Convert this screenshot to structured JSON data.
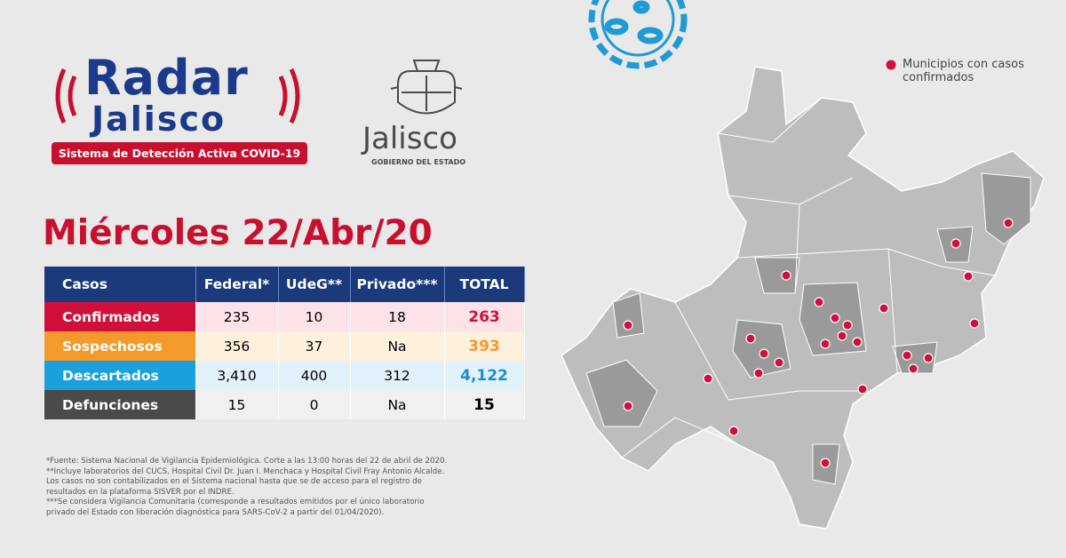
{
  "logo": {
    "radar": "Radar",
    "jalisco": "Jalisco",
    "tagline": "Sistema de Detección Activa COVID-19"
  },
  "government": {
    "name": "Jalisco",
    "subtitle": "GOBIERNO DEL ESTADO"
  },
  "date_title": "Miércoles 22/Abr/20",
  "table": {
    "header": [
      "Casos",
      "Federal*",
      "UdeG**",
      "Privado***",
      "TOTAL"
    ],
    "rows": [
      [
        "Confirmados",
        "235",
        "10",
        "18",
        "263"
      ],
      [
        "Sospechosos",
        "356",
        "37",
        "Na",
        "393"
      ],
      [
        "Descartados",
        "3,410",
        "400",
        "312",
        "4,122"
      ],
      [
        "Defunciones",
        "15",
        "0",
        "Na",
        "15"
      ]
    ]
  },
  "footnotes": [
    "*Fuente: Sistema Nacional de Vigilancia Epidemiológica. Corte a las 13:00 horas del 22 de abril de 2020.",
    "**Incluye laboratorios del CUCS, Hospital Civil Dr. Juan I. Menchaca y Hospital Civil Fray Antonio Alcalde.",
    "Los casos no son contabilizados en el Sistema nacional hasta que se de acceso para el registro de",
    "resultados en la plataforma SISVER por el INDRE.",
    "***Se considera Vigilancia Comunitaria (corresponde a resultados emitidos por el único laboratorio",
    "privado del Estado con liberación diagnóstica para SARS-CoV-2 a partir del 01/04/2020)."
  ],
  "legend": "Municipios con casos confirmados"
}
